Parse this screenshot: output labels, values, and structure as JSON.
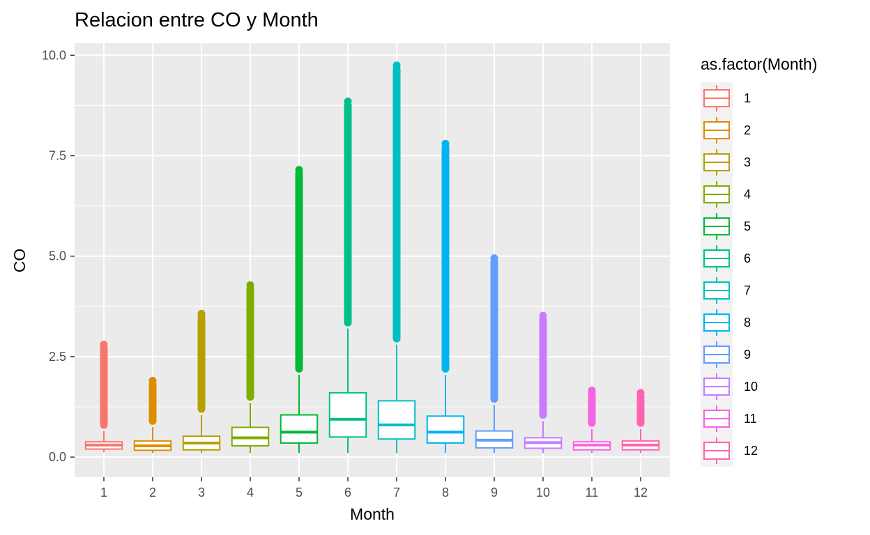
{
  "chart_data": {
    "type": "box",
    "title": "Relacion entre CO y Month",
    "xlabel": "Month",
    "ylabel": "CO",
    "ylim": [
      -0.5,
      10.3
    ],
    "yticks": [
      0.0,
      2.5,
      5.0,
      7.5,
      10.0
    ],
    "ytick_labels": [
      "0.0",
      "2.5",
      "5.0",
      "7.5",
      "10.0"
    ],
    "grid": true,
    "legend": {
      "title": "as.factor(Month)",
      "placement": "right"
    },
    "categories": [
      "1",
      "2",
      "3",
      "4",
      "5",
      "6",
      "7",
      "8",
      "9",
      "10",
      "11",
      "12"
    ],
    "series": [
      {
        "name": "1",
        "color": "#F8766D",
        "whisker_low": 0.12,
        "q1": 0.2,
        "median": 0.3,
        "q3": 0.38,
        "whisker_high": 0.65,
        "max_outlier": 2.8
      },
      {
        "name": "2",
        "color": "#DE8C00",
        "whisker_low": 0.1,
        "q1": 0.17,
        "median": 0.28,
        "q3": 0.4,
        "whisker_high": 0.75,
        "max_outlier": 1.9
      },
      {
        "name": "3",
        "color": "#B79F00",
        "whisker_low": 0.1,
        "q1": 0.18,
        "median": 0.35,
        "q3": 0.52,
        "whisker_high": 1.05,
        "max_outlier": 3.57
      },
      {
        "name": "4",
        "color": "#7CAE00",
        "whisker_low": 0.1,
        "q1": 0.28,
        "median": 0.48,
        "q3": 0.74,
        "whisker_high": 1.35,
        "max_outlier": 4.28
      },
      {
        "name": "5",
        "color": "#00BA38",
        "whisker_low": 0.1,
        "q1": 0.35,
        "median": 0.62,
        "q3": 1.05,
        "whisker_high": 2.05,
        "max_outlier": 7.15
      },
      {
        "name": "6",
        "color": "#00C08B",
        "whisker_low": 0.1,
        "q1": 0.5,
        "median": 0.94,
        "q3": 1.6,
        "whisker_high": 3.2,
        "max_outlier": 8.85
      },
      {
        "name": "7",
        "color": "#00BFC4",
        "whisker_low": 0.1,
        "q1": 0.45,
        "median": 0.8,
        "q3": 1.4,
        "whisker_high": 2.8,
        "max_outlier": 9.75
      },
      {
        "name": "8",
        "color": "#00B4F0",
        "whisker_low": 0.1,
        "q1": 0.35,
        "median": 0.62,
        "q3": 1.02,
        "whisker_high": 2.05,
        "max_outlier": 7.8
      },
      {
        "name": "9",
        "color": "#619CFF",
        "whisker_low": 0.1,
        "q1": 0.23,
        "median": 0.42,
        "q3": 0.65,
        "whisker_high": 1.3,
        "max_outlier": 4.95
      },
      {
        "name": "10",
        "color": "#C77CFF",
        "whisker_low": 0.1,
        "q1": 0.22,
        "median": 0.36,
        "q3": 0.48,
        "whisker_high": 0.9,
        "max_outlier": 3.52
      },
      {
        "name": "11",
        "color": "#F564E3",
        "whisker_low": 0.1,
        "q1": 0.18,
        "median": 0.3,
        "q3": 0.38,
        "whisker_high": 0.7,
        "max_outlier": 1.66
      },
      {
        "name": "12",
        "color": "#FF64B0",
        "whisker_low": 0.1,
        "q1": 0.18,
        "median": 0.3,
        "q3": 0.4,
        "whisker_high": 0.7,
        "max_outlier": 1.6
      }
    ]
  }
}
